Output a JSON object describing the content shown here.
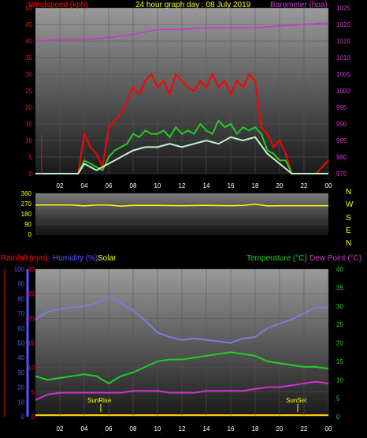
{
  "header": {
    "left_title": "Windspeed (kph)",
    "center_title": "24 hour graph day : 08 July 2019",
    "right_title": "Barometer (hpa)"
  },
  "bottom_header": {
    "rainfall": "Rainfall (mm)",
    "humidity": "Humidity (%)",
    "solar": "Solar",
    "temperature": "Temperature (°C)",
    "dewpoint": "Dew Point (°C)"
  },
  "markers": {
    "sunrise": "SunRise",
    "sunset": "SunSet"
  },
  "colors": {
    "windspeed": "#ff0000",
    "barometer": "#cc33cc",
    "wind_avg": "#22cc22",
    "wind_low": "#c8f0c8",
    "direction": "#ffff00",
    "humidity": "#7b7bdd",
    "temperature": "#22cc22",
    "dewpoint": "#cc33cc",
    "rainfall_axis": "#ff0000",
    "humidity_axis": "#5555ff",
    "temp_axis": "#22cc22",
    "title": "#ffff00"
  },
  "chart_data": [
    {
      "type": "line",
      "title": "24 hour graph day : 08 July 2019",
      "x_ticks": [
        "02",
        "04",
        "06",
        "08",
        "10",
        "12",
        "14",
        "16",
        "18",
        "20",
        "22",
        "00"
      ],
      "x_range_hours": [
        0,
        24
      ],
      "ylabel_left": "Windspeed (kph)",
      "ylim_left": [
        0,
        50
      ],
      "yticks_left": [
        0,
        5,
        10,
        15,
        20,
        25,
        30,
        35,
        40,
        45,
        50
      ],
      "ylabel_right": "Barometer (hpa)",
      "ylim_right": [
        975,
        1025
      ],
      "yticks_right": [
        975,
        980,
        985,
        990,
        995,
        1000,
        1005,
        1010,
        1015,
        1020,
        1025
      ],
      "series": [
        {
          "name": "Windspeed gust",
          "axis": "left",
          "x": [
            0,
            2,
            3.5,
            4,
            4.5,
            5,
            5.5,
            6,
            6.5,
            7,
            7.5,
            8,
            8.5,
            9,
            9.5,
            10,
            10.5,
            11,
            11.5,
            12,
            12.5,
            13,
            13.5,
            14,
            14.5,
            15,
            15.5,
            16,
            16.5,
            17,
            17.5,
            18,
            18.5,
            19,
            19.5,
            20,
            20.5,
            21,
            22,
            23,
            24
          ],
          "y": [
            0,
            0,
            0,
            12,
            8,
            6,
            2,
            14,
            16,
            18,
            22,
            26,
            24,
            28,
            30,
            26,
            28,
            24,
            30,
            28,
            26,
            25,
            28,
            26,
            30,
            26,
            28,
            24,
            28,
            26,
            30,
            28,
            14,
            12,
            8,
            10,
            6,
            0,
            0,
            0,
            4
          ]
        },
        {
          "name": "Windspeed average",
          "axis": "left",
          "x": [
            0,
            3.5,
            4,
            4.5,
            5,
            5.5,
            6,
            6.5,
            7,
            7.5,
            8,
            8.5,
            9,
            9.5,
            10,
            10.5,
            11,
            11.5,
            12,
            12.5,
            13,
            13.5,
            14,
            14.5,
            15,
            15.5,
            16,
            16.5,
            17,
            17.5,
            18,
            18.5,
            19,
            19.5,
            20,
            20.5,
            21,
            24
          ],
          "y": [
            0,
            0,
            4,
            3,
            2,
            1,
            5,
            7,
            8,
            9,
            12,
            11,
            13,
            12,
            12,
            13,
            11,
            14,
            12,
            13,
            12,
            15,
            13,
            12,
            16,
            14,
            15,
            12,
            14,
            13,
            14,
            12,
            7,
            6,
            4,
            4,
            0,
            0
          ]
        },
        {
          "name": "Windspeed low",
          "axis": "left",
          "x": [
            0,
            3.5,
            4,
            5,
            6,
            7,
            8,
            9,
            10,
            11,
            12,
            13,
            14,
            15,
            16,
            17,
            18,
            19,
            20,
            21,
            24
          ],
          "y": [
            0,
            0,
            3,
            1,
            3,
            5,
            7,
            8,
            8,
            9,
            8,
            9,
            10,
            9,
            11,
            10,
            11,
            6,
            3,
            0,
            0
          ]
        },
        {
          "name": "Barometer",
          "axis": "right",
          "x": [
            0,
            2,
            4,
            6,
            8,
            10,
            12,
            14,
            16,
            18,
            20,
            22,
            24
          ],
          "y": [
            1015,
            1015.5,
            1015.5,
            1016,
            1017,
            1018.5,
            1018.5,
            1019,
            1019,
            1019,
            1019.5,
            1020,
            1020.5
          ]
        }
      ]
    },
    {
      "type": "line",
      "title": "",
      "ylim": [
        0,
        360
      ],
      "yticks": [
        0,
        90,
        180,
        270,
        360
      ],
      "compass_labels": [
        "N",
        "W",
        "S",
        "E",
        "N"
      ],
      "series": [
        {
          "name": "Wind direction",
          "x": [
            0,
            3,
            4,
            5,
            6,
            7,
            8,
            10,
            12,
            14,
            16,
            17,
            18,
            19,
            20,
            22,
            24
          ],
          "y": [
            258,
            258,
            250,
            258,
            258,
            248,
            255,
            255,
            252,
            255,
            252,
            255,
            265,
            250,
            252,
            252,
            252
          ]
        }
      ]
    },
    {
      "type": "line",
      "title": "",
      "ylabel_left_outer": "Rainfall (mm)",
      "ylim_rain": [
        0,
        30
      ],
      "yticks_rain": [
        0,
        5,
        10,
        15,
        20,
        25,
        30
      ],
      "ylabel_left_inner": "Humidity (%)",
      "ylim_humidity": [
        0,
        100
      ],
      "yticks_humidity": [
        0,
        10,
        20,
        30,
        40,
        50,
        60,
        70,
        80,
        90,
        100
      ],
      "ylabel_right": "Temperature (°C)",
      "ylim_temp": [
        0,
        40
      ],
      "yticks_temp": [
        0,
        5,
        10,
        15,
        20,
        25,
        30,
        35,
        40
      ],
      "series": [
        {
          "name": "Humidity",
          "axis": "humidity",
          "x": [
            0,
            1,
            2,
            3,
            4,
            5,
            6,
            7,
            8,
            9,
            10,
            11,
            12,
            13,
            14,
            15,
            16,
            17,
            18,
            19,
            20,
            21,
            22,
            23,
            24
          ],
          "y": [
            66,
            71,
            73,
            74,
            75,
            77,
            81,
            77,
            72,
            65,
            57,
            54,
            52,
            53,
            52,
            51,
            50,
            53,
            54,
            60,
            63,
            66,
            70,
            74,
            74
          ]
        },
        {
          "name": "Temperature",
          "axis": "temp",
          "x": [
            0,
            1,
            2,
            3,
            4,
            5,
            6,
            7,
            8,
            9,
            10,
            11,
            12,
            13,
            14,
            15,
            16,
            17,
            18,
            19,
            20,
            21,
            22,
            23,
            24
          ],
          "y": [
            11,
            10,
            10.5,
            11,
            11.5,
            11,
            9,
            11,
            12,
            13.5,
            15,
            15.5,
            15.5,
            16,
            16.5,
            17,
            17.5,
            17,
            16.5,
            15,
            14.5,
            14,
            13.5,
            13.5,
            13
          ]
        },
        {
          "name": "Dew Point",
          "axis": "temp",
          "x": [
            0,
            1,
            2,
            3,
            4,
            5,
            6,
            7,
            8,
            9,
            10,
            11,
            12,
            13,
            14,
            15,
            16,
            17,
            18,
            19,
            20,
            21,
            22,
            23,
            24
          ],
          "y": [
            4.5,
            6,
            6.5,
            6.5,
            6.5,
            6.5,
            6.5,
            6.5,
            7,
            7,
            7,
            6.5,
            6.5,
            6.5,
            7,
            7,
            7,
            7,
            7.5,
            8,
            8,
            8.5,
            9,
            9.5,
            9
          ]
        },
        {
          "name": "Rainfall",
          "axis": "rain",
          "x": [
            0,
            24
          ],
          "y": [
            0,
            0
          ]
        }
      ]
    }
  ]
}
